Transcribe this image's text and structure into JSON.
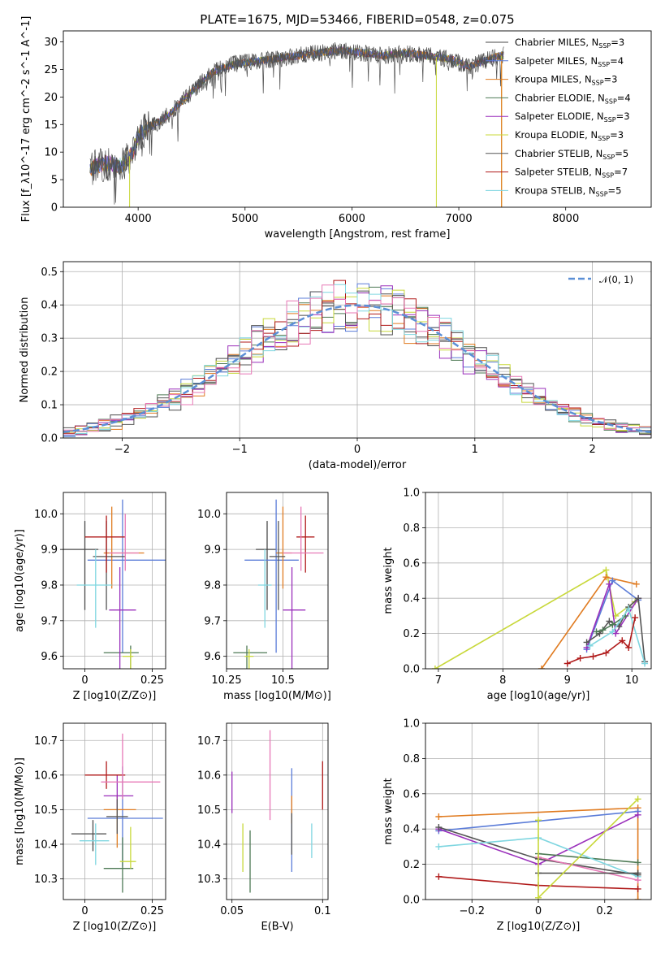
{
  "colors": {
    "Chabrier MILES": "#4a4a4a",
    "Salpeter MILES": "#5b7cd8",
    "Kroupa MILES": "#e07b20",
    "Chabrier ELODIE": "#4e7a55",
    "Salpeter ELODIE": "#9a2fbb",
    "Kroupa ELODIE": "#c8d83a",
    "Chabrier STELIB": "#555555",
    "Salpeter STELIB": "#b01a1a",
    "Kroupa STELIB": "#7fd6e0",
    "pink": "#e778b6",
    "gauss": "#5b8fd6"
  },
  "chart_data": [
    {
      "id": "spectrum",
      "type": "line",
      "title": "PLATE=1675, MJD=53466, FIBERID=0548, z=0.075",
      "xlabel": "wavelength [Angstrom, rest frame]",
      "ylabel": "Flux [f_λ10^-17 erg cm^-2 s^-1 A^-1]",
      "xlim": [
        3300,
        8800
      ],
      "ylim": [
        0,
        32
      ],
      "xticks": [
        4000,
        5000,
        6000,
        7000,
        8000
      ],
      "yticks": [
        0,
        5,
        10,
        15,
        20,
        25,
        30
      ],
      "grid": false,
      "legend_location": "upper-right",
      "legend": [
        {
          "name": "Chabrier MILES",
          "nssp": "3"
        },
        {
          "name": "Salpeter MILES",
          "nssp": "4"
        },
        {
          "name": "Kroupa MILES",
          "nssp": "3"
        },
        {
          "name": "Chabrier ELODIE",
          "nssp": "4"
        },
        {
          "name": "Salpeter ELODIE",
          "nssp": "3"
        },
        {
          "name": "Kroupa ELODIE",
          "nssp": "3"
        },
        {
          "name": "Chabrier STELIB",
          "nssp": "5"
        },
        {
          "name": "Salpeter STELIB",
          "nssp": "7"
        },
        {
          "name": "Kroupa STELIB",
          "nssp": "5"
        }
      ],
      "continuum": {
        "x": [
          3550,
          3700,
          3850,
          3950,
          4000,
          4100,
          4200,
          4300,
          4500,
          4700,
          4900,
          5100,
          5300,
          5500,
          5700,
          5900,
          6100,
          6300,
          6500,
          6700,
          6900,
          7100,
          7300,
          7500
        ],
        "y": [
          7,
          8,
          7.5,
          10,
          13,
          14.5,
          15.5,
          17,
          21,
          24.5,
          26,
          26.5,
          27,
          27.5,
          28,
          28.5,
          28,
          27.5,
          28,
          27.5,
          27,
          25.5,
          27,
          28
        ]
      },
      "spikes": [
        {
          "x": 3920,
          "y": 0
        },
        {
          "x": 6790,
          "y": 0
        },
        {
          "x": 7400,
          "y": 0
        }
      ]
    },
    {
      "id": "residuals",
      "type": "step",
      "xlabel": "(data-model)/error",
      "ylabel": "Normed distribution",
      "xlim": [
        -2.5,
        2.5
      ],
      "ylim": [
        0,
        0.53
      ],
      "xticks": [
        -2,
        -1,
        0,
        1,
        2
      ],
      "yticks": [
        0.0,
        0.1,
        0.2,
        0.3,
        0.4,
        0.5
      ],
      "grid": true,
      "legend_location": "upper-right",
      "legend": [
        {
          "name": "𝒩(0, 1)"
        }
      ],
      "gaussian": {
        "mean": 0,
        "sigma": 1
      }
    },
    {
      "id": "age_vs_Z",
      "type": "errorbar",
      "xlabel": "Z [log10(Z/Z⊙)]",
      "ylabel": "age [log10(age/yr)]",
      "xlim": [
        -0.08,
        0.3
      ],
      "ylim": [
        9.565,
        10.06
      ],
      "xticks": [
        0.0,
        0.25
      ],
      "yticks": [
        9.6,
        9.7,
        9.8,
        9.9,
        10.0
      ],
      "grid": true,
      "points": [
        {
          "model": "Chabrier MILES",
          "x": 0.0,
          "y": 9.9,
          "xerr": [
            0.09,
            0.05
          ],
          "yerr": [
            0.17,
            0.08
          ]
        },
        {
          "model": "Salpeter MILES",
          "x": 0.14,
          "y": 9.87,
          "xerr": [
            0.13,
            0.16
          ],
          "yerr": [
            0.26,
            0.17
          ]
        },
        {
          "model": "Kroupa MILES",
          "x": 0.1,
          "y": 9.89,
          "xerr": [
            0.03,
            0.12
          ],
          "yerr": [
            0.1,
            0.13
          ]
        },
        {
          "model": "Chabrier ELODIE",
          "x": 0.17,
          "y": 9.61,
          "xerr": [
            0.1,
            0.03
          ],
          "yerr": [
            0.23,
            0.02
          ]
        },
        {
          "model": "Salpeter ELODIE",
          "x": 0.13,
          "y": 9.73,
          "xerr": [
            0.04,
            0.06
          ],
          "yerr": [
            0.3,
            0.12
          ]
        },
        {
          "model": "Kroupa ELODIE",
          "x": 0.17,
          "y": 9.6,
          "xerr": [
            0.03,
            0.01
          ],
          "yerr": [
            0.25,
            0.02
          ]
        },
        {
          "model": "Chabrier STELIB",
          "x": 0.08,
          "y": 9.88,
          "xerr": [
            0.05,
            0.07
          ],
          "yerr": [
            0.15,
            0.1
          ]
        },
        {
          "model": "Salpeter STELIB",
          "x": 0.08,
          "y": 9.935,
          "xerr": [
            0.08,
            0.07
          ],
          "yerr": [
            0.1,
            0.06
          ]
        },
        {
          "model": "Kroupa STELIB",
          "x": 0.04,
          "y": 9.8,
          "xerr": [
            0.07,
            0.06
          ],
          "yerr": [
            0.12,
            0.1
          ]
        },
        {
          "model": "pink",
          "x": 0.15,
          "y": 9.89,
          "xerr": [
            0.06,
            0.05
          ],
          "yerr": [
            0.05,
            0.11
          ]
        }
      ]
    },
    {
      "id": "age_vs_mass",
      "type": "errorbar",
      "xlabel": "mass [log10(M/M⊙)]",
      "ylabel": "",
      "xlim": [
        10.25,
        10.7
      ],
      "ylim": [
        9.565,
        10.06
      ],
      "xticks": [
        10.25,
        10.5
      ],
      "yticks": [
        9.6,
        9.7,
        9.8,
        9.9,
        10.0
      ],
      "grid": true,
      "points": [
        {
          "model": "Chabrier MILES",
          "x": 10.43,
          "y": 9.9,
          "xerr": [
            0.05,
            0.04
          ],
          "yerr": [
            0.17,
            0.08
          ]
        },
        {
          "model": "Salpeter MILES",
          "x": 10.47,
          "y": 9.87,
          "xerr": [
            0.14,
            0.1
          ],
          "yerr": [
            0.26,
            0.17
          ]
        },
        {
          "model": "Kroupa MILES",
          "x": 10.5,
          "y": 9.89,
          "xerr": [
            0.03,
            0.04
          ],
          "yerr": [
            0.1,
            0.13
          ]
        },
        {
          "model": "Chabrier ELODIE",
          "x": 10.34,
          "y": 9.61,
          "xerr": [
            0.06,
            0.09
          ],
          "yerr": [
            0.23,
            0.02
          ]
        },
        {
          "model": "Salpeter ELODIE",
          "x": 10.54,
          "y": 9.73,
          "xerr": [
            0.04,
            0.06
          ],
          "yerr": [
            0.3,
            0.12
          ]
        },
        {
          "model": "Kroupa ELODIE",
          "x": 10.35,
          "y": 9.6,
          "xerr": [
            0.02,
            0.02
          ],
          "yerr": [
            0.25,
            0.02
          ]
        },
        {
          "model": "Chabrier STELIB",
          "x": 10.48,
          "y": 9.88,
          "xerr": [
            0.04,
            0.03
          ],
          "yerr": [
            0.15,
            0.1
          ]
        },
        {
          "model": "Salpeter STELIB",
          "x": 10.6,
          "y": 9.935,
          "xerr": [
            0.04,
            0.04
          ],
          "yerr": [
            0.1,
            0.06
          ]
        },
        {
          "model": "Kroupa STELIB",
          "x": 10.42,
          "y": 9.8,
          "xerr": [
            0.03,
            0.03
          ],
          "yerr": [
            0.12,
            0.1
          ]
        },
        {
          "model": "pink",
          "x": 10.58,
          "y": 9.89,
          "xerr": [
            0.08,
            0.1
          ],
          "yerr": [
            0.05,
            0.13
          ]
        }
      ]
    },
    {
      "id": "massweight_vs_age",
      "type": "line",
      "xlabel": "age [log10(age/yr)]",
      "ylabel": "mass weight",
      "xlim": [
        6.8,
        10.3
      ],
      "ylim": [
        0,
        1
      ],
      "xticks": [
        7,
        8,
        9,
        10
      ],
      "yticks": [
        0.0,
        0.2,
        0.4,
        0.6,
        0.8,
        1.0
      ],
      "grid": true,
      "series": [
        {
          "model": "Kroupa ELODIE",
          "x": [
            6.95,
            9.6,
            9.75,
            10.05
          ],
          "y": [
            0.0,
            0.56,
            0.3,
            0.38
          ]
        },
        {
          "model": "Kroupa MILES",
          "x": [
            8.6,
            9.6,
            10.07
          ],
          "y": [
            0.0,
            0.52,
            0.48
          ]
        },
        {
          "model": "Salpeter MILES",
          "x": [
            9.3,
            9.7,
            10.1
          ],
          "y": [
            0.11,
            0.5,
            0.39
          ]
        },
        {
          "model": "Salpeter ELODIE",
          "x": [
            9.3,
            9.65,
            9.75,
            10.1
          ],
          "y": [
            0.12,
            0.48,
            0.2,
            0.4
          ]
        },
        {
          "model": "Chabrier STELIB",
          "x": [
            9.3,
            9.5,
            9.65,
            9.8,
            9.95,
            10.1,
            10.2
          ],
          "y": [
            0.15,
            0.2,
            0.27,
            0.24,
            0.35,
            0.4,
            0.04
          ]
        },
        {
          "model": "Chabrier ELODIE",
          "x": [
            9.45,
            9.55,
            9.7,
            9.9
          ],
          "y": [
            0.21,
            0.22,
            0.25,
            0.3
          ]
        },
        {
          "model": "Kroupa STELIB",
          "x": [
            9.35,
            9.7,
            9.95,
            10.2
          ],
          "y": [
            0.13,
            0.21,
            0.34,
            0.03
          ]
        },
        {
          "model": "Salpeter STELIB",
          "x": [
            9.0,
            9.2,
            9.4,
            9.6,
            9.85,
            9.95,
            10.05
          ],
          "y": [
            0.03,
            0.06,
            0.07,
            0.09,
            0.16,
            0.12,
            0.29
          ]
        }
      ]
    },
    {
      "id": "mass_vs_Z",
      "type": "errorbar",
      "xlabel": "Z [log10(Z/Z⊙)]",
      "ylabel": "mass [log10(M/M⊙)]",
      "xlim": [
        -0.08,
        0.3
      ],
      "ylim": [
        10.24,
        10.75
      ],
      "xticks": [
        0.0,
        0.25
      ],
      "yticks": [
        10.3,
        10.4,
        10.5,
        10.6,
        10.7
      ],
      "grid": true,
      "points": [
        {
          "model": "Chabrier MILES",
          "x": 0.03,
          "y": 10.43,
          "xerr": [
            0.08,
            0.05
          ],
          "yerr": [
            0.05,
            0.04
          ]
        },
        {
          "model": "Salpeter MILES",
          "x": 0.14,
          "y": 10.475,
          "xerr": [
            0.13,
            0.15
          ],
          "yerr": [
            0.14,
            0.15
          ]
        },
        {
          "model": "Kroupa MILES",
          "x": 0.12,
          "y": 10.5,
          "xerr": [
            0.05,
            0.07
          ],
          "yerr": [
            0.11,
            0.04
          ]
        },
        {
          "model": "Chabrier ELODIE",
          "x": 0.14,
          "y": 10.33,
          "xerr": [
            0.07,
            0.04
          ],
          "yerr": [
            0.07,
            0.09
          ]
        },
        {
          "model": "Salpeter ELODIE",
          "x": 0.12,
          "y": 10.54,
          "xerr": [
            0.05,
            0.06
          ],
          "yerr": [
            0.04,
            0.06
          ]
        },
        {
          "model": "Kroupa ELODIE",
          "x": 0.17,
          "y": 10.35,
          "xerr": [
            0.04,
            0.02
          ],
          "yerr": [
            0.02,
            0.1
          ]
        },
        {
          "model": "Chabrier STELIB",
          "x": 0.12,
          "y": 10.48,
          "xerr": [
            0.04,
            0.04
          ],
          "yerr": [
            0.05,
            0.05
          ]
        },
        {
          "model": "Salpeter STELIB",
          "x": 0.08,
          "y": 10.6,
          "xerr": [
            0.08,
            0.07
          ],
          "yerr": [
            0.04,
            0.04
          ]
        },
        {
          "model": "Kroupa STELIB",
          "x": 0.04,
          "y": 10.41,
          "xerr": [
            0.06,
            0.05
          ],
          "yerr": [
            0.07,
            0.05
          ]
        },
        {
          "model": "pink",
          "x": 0.14,
          "y": 10.58,
          "xerr": [
            0.08,
            0.14
          ],
          "yerr": [
            0.05,
            0.14
          ]
        }
      ]
    },
    {
      "id": "mass_vs_EBV",
      "type": "errorbar",
      "xlabel": "E(B-V)",
      "ylabel": "",
      "xlim": [
        0.047,
        0.103
      ],
      "ylim": [
        10.24,
        10.75
      ],
      "xticks": [
        0.05,
        0.1
      ],
      "yticks": [
        10.3,
        10.4,
        10.5,
        10.6,
        10.7
      ],
      "grid": true,
      "points": [
        {
          "model": "Salpeter ELODIE",
          "x": 0.05,
          "y": 10.55,
          "xerr": [
            0,
            0
          ],
          "yerr": [
            0.06,
            0.06
          ]
        },
        {
          "model": "Kroupa ELODIE",
          "x": 0.056,
          "y": 10.39,
          "xerr": [
            0,
            0
          ],
          "yerr": [
            0.07,
            0.07
          ]
        },
        {
          "model": "Chabrier ELODIE",
          "x": 0.06,
          "y": 10.35,
          "xerr": [
            0,
            0
          ],
          "yerr": [
            0.09,
            0.09
          ]
        },
        {
          "model": "pink",
          "x": 0.071,
          "y": 10.6,
          "xerr": [
            0,
            0
          ],
          "yerr": [
            0.13,
            0.13
          ]
        },
        {
          "model": "Salpeter MILES",
          "x": 0.083,
          "y": 10.47,
          "xerr": [
            0,
            0
          ],
          "yerr": [
            0.15,
            0.15
          ]
        },
        {
          "model": "Kroupa MILES",
          "x": 0.083,
          "y": 10.5,
          "xerr": [
            0,
            0
          ],
          "yerr": [
            0.04,
            0.04
          ]
        },
        {
          "model": "Chabrier STELIB",
          "x": 0.083,
          "y": 10.43,
          "xerr": [
            0,
            0
          ],
          "yerr": [
            0.06,
            0.06
          ]
        },
        {
          "model": "Kroupa STELIB",
          "x": 0.094,
          "y": 10.41,
          "xerr": [
            0,
            0
          ],
          "yerr": [
            0.05,
            0.05
          ]
        },
        {
          "model": "Salpeter STELIB",
          "x": 0.1,
          "y": 10.57,
          "xerr": [
            0,
            0
          ],
          "yerr": [
            0.07,
            0.07
          ]
        }
      ]
    },
    {
      "id": "massweight_vs_Z",
      "type": "line",
      "xlabel": "Z [log10(Z/Z⊙)]",
      "ylabel": "mass weight",
      "xlim": [
        -0.34,
        0.34
      ],
      "ylim": [
        0,
        1
      ],
      "xticks": [
        -0.2,
        0.0,
        0.2
      ],
      "yticks": [
        0.0,
        0.2,
        0.4,
        0.6,
        0.8,
        1.0
      ],
      "grid": true,
      "series": [
        {
          "model": "Kroupa MILES",
          "x": [
            -0.3,
            0.3,
            0.3
          ],
          "y": [
            0.47,
            0.52,
            0.0
          ]
        },
        {
          "model": "Salpeter MILES",
          "x": [
            -0.3,
            0.3
          ],
          "y": [
            0.39,
            0.5
          ]
        },
        {
          "model": "Salpeter ELODIE",
          "x": [
            -0.3,
            0.0,
            0.3
          ],
          "y": [
            0.4,
            0.2,
            0.48
          ]
        },
        {
          "model": "Chabrier STELIB",
          "x": [
            -0.3,
            0.0,
            0.3
          ],
          "y": [
            0.41,
            0.23,
            0.14
          ]
        },
        {
          "model": "Chabrier ELODIE",
          "x": [
            0.0,
            0.3
          ],
          "y": [
            0.26,
            0.21
          ]
        },
        {
          "model": "Kroupa STELIB",
          "x": [
            -0.3,
            0.0,
            0.3
          ],
          "y": [
            0.3,
            0.35,
            0.13
          ]
        },
        {
          "model": "pink",
          "x": [
            0.0,
            0.3
          ],
          "y": [
            0.24,
            0.11
          ]
        },
        {
          "model": "Salpeter STELIB",
          "x": [
            -0.3,
            0.0,
            0.3
          ],
          "y": [
            0.13,
            0.08,
            0.06
          ]
        },
        {
          "model": "Chabrier MILES",
          "x": [
            0.0,
            0.3
          ],
          "y": [
            0.15,
            0.15
          ]
        },
        {
          "model": "Kroupa ELODIE",
          "x": [
            0.0,
            0.0,
            0.3
          ],
          "y": [
            0.45,
            0.01,
            0.57
          ]
        }
      ]
    }
  ]
}
